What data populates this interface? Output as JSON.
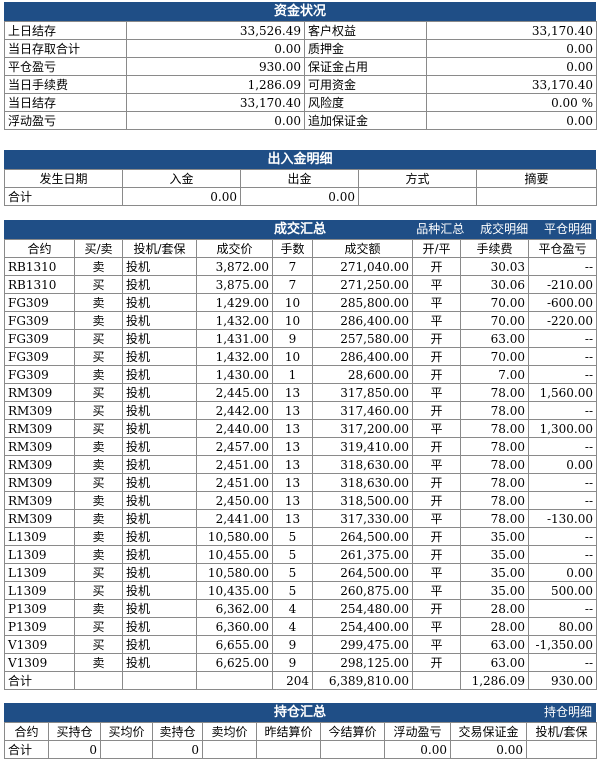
{
  "funds": {
    "title": "资金状况",
    "rows": [
      {
        "l1": "上日结存",
        "v1": "33,526.49",
        "l2": "客户权益",
        "v2": "33,170.40"
      },
      {
        "l1": "当日存取合计",
        "v1": "0.00",
        "l2": "质押金",
        "v2": "0.00"
      },
      {
        "l1": "平仓盈亏",
        "v1": "930.00",
        "l2": "保证金占用",
        "v2": "0.00"
      },
      {
        "l1": "当日手续费",
        "v1": "1,286.09",
        "l2": "可用资金",
        "v2": "33,170.40"
      },
      {
        "l1": "当日结存",
        "v1": "33,170.40",
        "l2": "风险度",
        "v2": "0.00 %"
      },
      {
        "l1": "浮动盈亏",
        "v1": "0.00",
        "l2": "追加保证金",
        "v2": "0.00"
      }
    ]
  },
  "cashflow": {
    "title": "出入金明细",
    "headers": [
      "发生日期",
      "入金",
      "出金",
      "方式",
      "摘要"
    ],
    "total": {
      "label": "合计",
      "in": "0.00",
      "out": "0.00"
    }
  },
  "trades": {
    "title": "成交汇总",
    "links": [
      "品种汇总",
      "成交明细",
      "平仓明细"
    ],
    "headers": [
      "合约",
      "买/卖",
      "投机/套保",
      "成交价",
      "手数",
      "成交额",
      "开/平",
      "手续费",
      "平仓盈亏"
    ],
    "rows": [
      [
        "RB1310",
        "卖",
        "投机",
        "3,872.00",
        "7",
        "271,040.00",
        "开",
        "30.03",
        "--"
      ],
      [
        "RB1310",
        "买",
        "投机",
        "3,875.00",
        "7",
        "271,250.00",
        "平",
        "30.06",
        "-210.00"
      ],
      [
        "FG309",
        "卖",
        "投机",
        "1,429.00",
        "10",
        "285,800.00",
        "平",
        "70.00",
        "-600.00"
      ],
      [
        "FG309",
        "卖",
        "投机",
        "1,432.00",
        "10",
        "286,400.00",
        "平",
        "70.00",
        "-220.00"
      ],
      [
        "FG309",
        "买",
        "投机",
        "1,431.00",
        "9",
        "257,580.00",
        "开",
        "63.00",
        "--"
      ],
      [
        "FG309",
        "买",
        "投机",
        "1,432.00",
        "10",
        "286,400.00",
        "开",
        "70.00",
        "--"
      ],
      [
        "FG309",
        "卖",
        "投机",
        "1,430.00",
        "1",
        "28,600.00",
        "开",
        "7.00",
        "--"
      ],
      [
        "RM309",
        "买",
        "投机",
        "2,445.00",
        "13",
        "317,850.00",
        "平",
        "78.00",
        "1,560.00"
      ],
      [
        "RM309",
        "买",
        "投机",
        "2,442.00",
        "13",
        "317,460.00",
        "开",
        "78.00",
        "--"
      ],
      [
        "RM309",
        "买",
        "投机",
        "2,440.00",
        "13",
        "317,200.00",
        "平",
        "78.00",
        "1,300.00"
      ],
      [
        "RM309",
        "卖",
        "投机",
        "2,457.00",
        "13",
        "319,410.00",
        "开",
        "78.00",
        "--"
      ],
      [
        "RM309",
        "卖",
        "投机",
        "2,451.00",
        "13",
        "318,630.00",
        "平",
        "78.00",
        "0.00"
      ],
      [
        "RM309",
        "买",
        "投机",
        "2,451.00",
        "13",
        "318,630.00",
        "开",
        "78.00",
        "--"
      ],
      [
        "RM309",
        "卖",
        "投机",
        "2,450.00",
        "13",
        "318,500.00",
        "开",
        "78.00",
        "--"
      ],
      [
        "RM309",
        "卖",
        "投机",
        "2,441.00",
        "13",
        "317,330.00",
        "平",
        "78.00",
        "-130.00"
      ],
      [
        "L1309",
        "卖",
        "投机",
        "10,580.00",
        "5",
        "264,500.00",
        "开",
        "35.00",
        "--"
      ],
      [
        "L1309",
        "卖",
        "投机",
        "10,455.00",
        "5",
        "261,375.00",
        "开",
        "35.00",
        "--"
      ],
      [
        "L1309",
        "买",
        "投机",
        "10,580.00",
        "5",
        "264,500.00",
        "平",
        "35.00",
        "0.00"
      ],
      [
        "L1309",
        "买",
        "投机",
        "10,435.00",
        "5",
        "260,875.00",
        "平",
        "35.00",
        "500.00"
      ],
      [
        "P1309",
        "卖",
        "投机",
        "6,362.00",
        "4",
        "254,480.00",
        "开",
        "28.00",
        "--"
      ],
      [
        "P1309",
        "买",
        "投机",
        "6,360.00",
        "4",
        "254,400.00",
        "平",
        "28.00",
        "80.00"
      ],
      [
        "V1309",
        "买",
        "投机",
        "6,655.00",
        "9",
        "299,475.00",
        "平",
        "63.00",
        "-1,350.00"
      ],
      [
        "V1309",
        "卖",
        "投机",
        "6,625.00",
        "9",
        "298,125.00",
        "开",
        "63.00",
        "--"
      ]
    ],
    "total": {
      "label": "合计",
      "lots": "204",
      "amount": "6,389,810.00",
      "fee": "1,286.09",
      "pnl": "930.00"
    }
  },
  "positions": {
    "title": "持仓汇总",
    "link": "持仓明细",
    "headers": [
      "合约",
      "买持仓",
      "买均价",
      "卖持仓",
      "卖均价",
      "昨结算价",
      "今结算价",
      "浮动盈亏",
      "交易保证金",
      "投机/套保"
    ],
    "total": {
      "label": "合计",
      "buy": "0",
      "sell": "0",
      "float": "0.00",
      "margin": "0.00"
    }
  },
  "colors": {
    "header_bar": "#1f4e86",
    "border": "#8a8a8a"
  }
}
